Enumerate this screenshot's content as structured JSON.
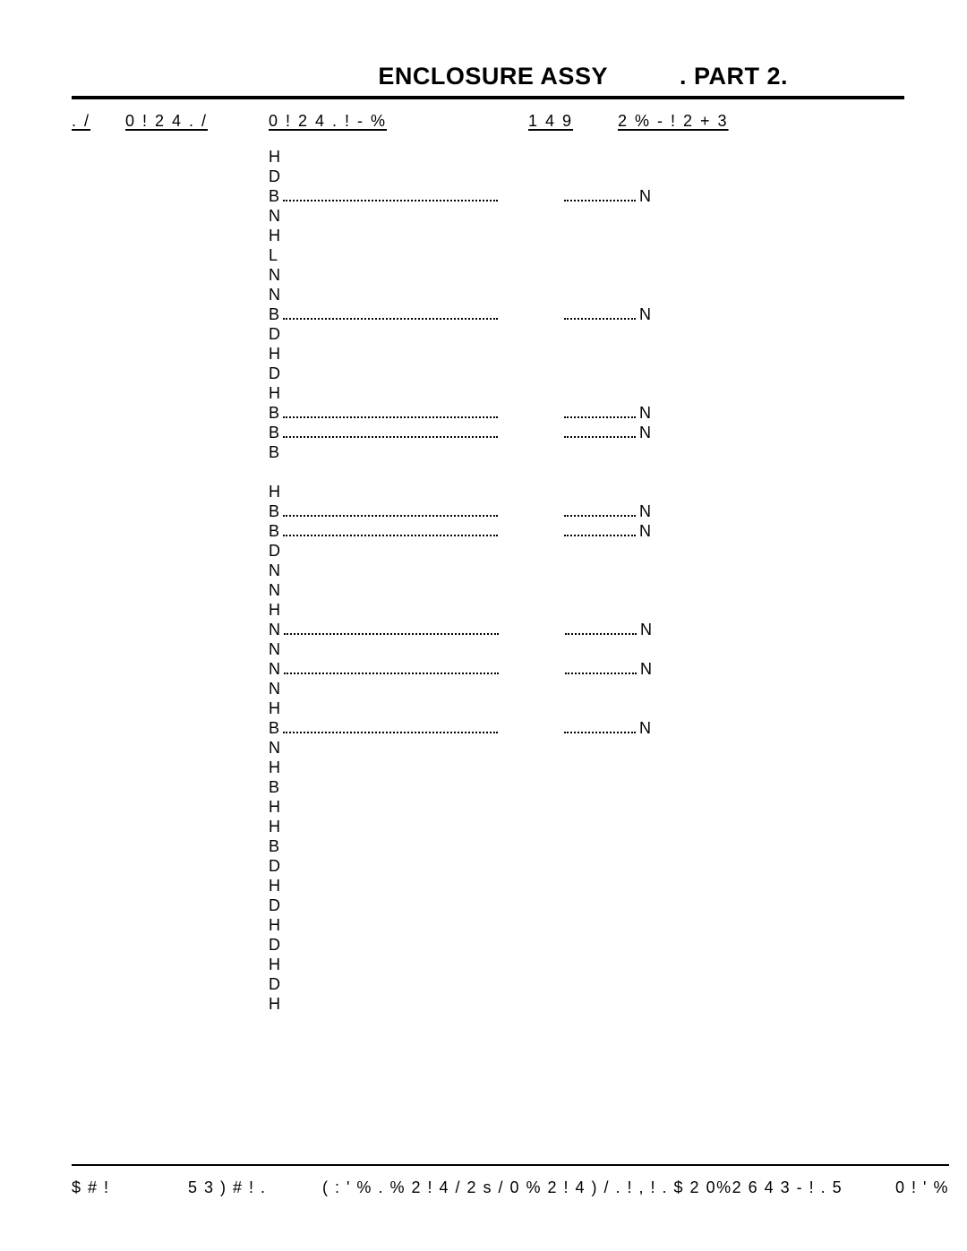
{
  "header": {
    "title": "ENCLOSURE ASSY",
    "part": ". PART 2."
  },
  "columns": {
    "no": ". /",
    "part_no": "0 ! 2 4   . /",
    "part_name": "0 ! 2 4   . ! - %",
    "qty": "1 4 9",
    "remarks": "2 % - ! 2 + 3"
  },
  "rows": [
    {
      "name": "H",
      "has_dots": false,
      "remark": ""
    },
    {
      "name": "D",
      "has_dots": false,
      "remark": ""
    },
    {
      "name": "B",
      "has_dots": true,
      "remark": "N"
    },
    {
      "name": "N",
      "has_dots": false,
      "remark": ""
    },
    {
      "name": "H",
      "has_dots": false,
      "remark": ""
    },
    {
      "name": "L",
      "has_dots": false,
      "remark": ""
    },
    {
      "name": "N",
      "has_dots": false,
      "remark": ""
    },
    {
      "name": "N",
      "has_dots": false,
      "remark": ""
    },
    {
      "name": "B",
      "has_dots": true,
      "remark": "N"
    },
    {
      "name": "D",
      "has_dots": false,
      "remark": ""
    },
    {
      "name": "H",
      "has_dots": false,
      "remark": ""
    },
    {
      "name": "D",
      "has_dots": false,
      "remark": ""
    },
    {
      "name": "H",
      "has_dots": false,
      "remark": ""
    },
    {
      "name": "B",
      "has_dots": true,
      "remark": "N"
    },
    {
      "name": "B",
      "has_dots": true,
      "remark": "N"
    },
    {
      "name": "B",
      "has_dots": false,
      "remark": ""
    },
    {
      "name": "",
      "has_dots": false,
      "remark": ""
    },
    {
      "name": "H",
      "has_dots": false,
      "remark": ""
    },
    {
      "name": "B",
      "has_dots": true,
      "remark": "N"
    },
    {
      "name": "B",
      "has_dots": true,
      "remark": "N"
    },
    {
      "name": "D",
      "has_dots": false,
      "remark": ""
    },
    {
      "name": "N",
      "has_dots": false,
      "remark": ""
    },
    {
      "name": "N",
      "has_dots": false,
      "remark": ""
    },
    {
      "name": "H",
      "has_dots": false,
      "remark": ""
    },
    {
      "name": "N",
      "has_dots": true,
      "remark": "N"
    },
    {
      "name": "N",
      "has_dots": false,
      "remark": ""
    },
    {
      "name": "N",
      "has_dots": true,
      "remark": "N"
    },
    {
      "name": "N",
      "has_dots": false,
      "remark": ""
    },
    {
      "name": "H",
      "has_dots": false,
      "remark": ""
    },
    {
      "name": "B",
      "has_dots": true,
      "remark": "N"
    },
    {
      "name": "N",
      "has_dots": false,
      "remark": ""
    },
    {
      "name": "H",
      "has_dots": false,
      "remark": ""
    },
    {
      "name": "B",
      "has_dots": false,
      "remark": ""
    },
    {
      "name": "H",
      "has_dots": false,
      "remark": ""
    },
    {
      "name": "H",
      "has_dots": false,
      "remark": ""
    },
    {
      "name": "B",
      "has_dots": false,
      "remark": ""
    },
    {
      "name": "D",
      "has_dots": false,
      "remark": ""
    },
    {
      "name": "H",
      "has_dots": false,
      "remark": ""
    },
    {
      "name": "D",
      "has_dots": false,
      "remark": ""
    },
    {
      "name": "H",
      "has_dots": false,
      "remark": ""
    },
    {
      "name": "D",
      "has_dots": false,
      "remark": ""
    },
    {
      "name": "H",
      "has_dots": false,
      "remark": ""
    },
    {
      "name": "D",
      "has_dots": false,
      "remark": ""
    },
    {
      "name": "H",
      "has_dots": false,
      "remark": ""
    }
  ],
  "footer": {
    "left": "$ # !",
    "mid1": "5 3 )  # ! .",
    "mid2": "( :  ' % . % 2 ! 4 / 2  s  / 0 % 2 ! 4 ) / . ! , ! . $ 2 0%2 6 4 3  - ! . 5",
    "right": "0 ! ' %"
  }
}
